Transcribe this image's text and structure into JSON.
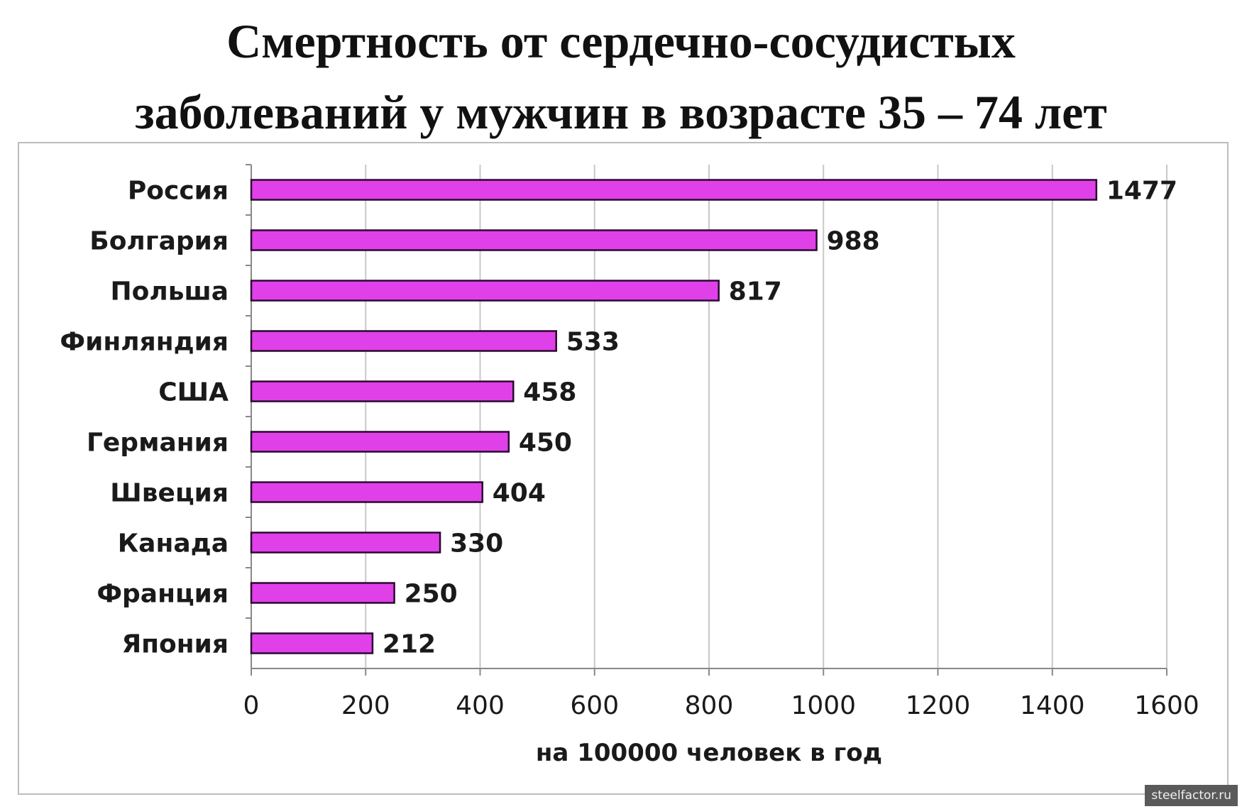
{
  "title_line1": "Смертность от сердечно-сосудистых",
  "title_line2": "заболеваний у мужчин в возрасте 35 – 74 лет",
  "watermark": "steelfactor.ru",
  "chart_data": {
    "type": "bar",
    "orientation": "horizontal",
    "categories": [
      "Россия",
      "Болгария",
      "Польша",
      "Финляндия",
      "США",
      "Германия",
      "Швеция",
      "Канада",
      "Франция",
      "Япония"
    ],
    "values": [
      1477,
      988,
      817,
      533,
      458,
      450,
      404,
      330,
      250,
      212
    ],
    "xlabel": "на 100000 человек в год",
    "ylabel": "",
    "xlim": [
      0,
      1600
    ],
    "xticks": [
      0,
      200,
      400,
      600,
      800,
      1000,
      1200,
      1400,
      1600
    ],
    "grid": true,
    "legend": "none",
    "bar_color": "#e040e8",
    "bar_edge_color": "#2a0830"
  }
}
